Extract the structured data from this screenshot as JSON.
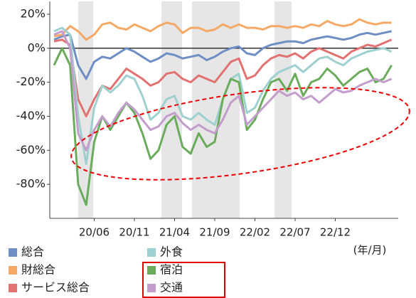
{
  "chart_data": {
    "type": "line",
    "categories": [
      null,
      null,
      null,
      null,
      null,
      "20/06",
      null,
      null,
      null,
      null,
      "20/11",
      null,
      null,
      null,
      null,
      "21/04",
      null,
      null,
      null,
      null,
      "21/09",
      null,
      null,
      null,
      null,
      "22/02",
      null,
      null,
      null,
      null,
      "22/07",
      null,
      null,
      null,
      null,
      "22/12",
      null,
      null,
      null,
      null,
      null,
      null,
      null
    ],
    "x_label": "(年/月)",
    "ylim": [
      -100,
      25
    ],
    "yticks": [
      {
        "value": -80,
        "label": "-80%"
      },
      {
        "value": -60,
        "label": "-60%"
      },
      {
        "value": -40,
        "label": "-40%"
      },
      {
        "value": -20,
        "label": "-20%"
      },
      {
        "value": 0,
        "label": "0%"
      },
      {
        "value": 20,
        "label": "20%"
      }
    ],
    "legend": "bottom",
    "series": [
      {
        "name": "総合",
        "color": "#6f8fc4",
        "values": [
          5,
          7,
          8,
          -10,
          -18,
          -8,
          -5,
          -6,
          -3,
          0,
          -2,
          -5,
          -8,
          -6,
          -3,
          -4,
          -6,
          -5,
          -4,
          -7,
          -5,
          -2,
          0,
          1,
          -3,
          -4,
          0,
          2,
          3,
          4,
          4,
          3,
          5,
          6,
          7,
          6,
          5,
          6,
          8,
          9,
          8,
          9,
          10
        ]
      },
      {
        "name": "財総合",
        "color": "#f4aa66",
        "values": [
          7,
          8,
          13,
          10,
          5,
          8,
          14,
          15,
          12,
          11,
          14,
          12,
          10,
          13,
          15,
          14,
          9,
          12,
          12,
          10,
          11,
          14,
          12,
          14,
          12,
          12,
          11,
          13,
          13,
          12,
          13,
          12,
          14,
          13,
          16,
          14,
          13,
          14,
          17,
          15,
          14,
          15,
          15
        ]
      },
      {
        "name": "サービス総合",
        "color": "#e27272",
        "values": [
          4,
          5,
          2,
          -30,
          -40,
          -30,
          -22,
          -24,
          -18,
          -12,
          -15,
          -18,
          -22,
          -20,
          -15,
          -14,
          -18,
          -20,
          -16,
          -18,
          -20,
          -14,
          -8,
          -6,
          -18,
          -16,
          -10,
          -6,
          -4,
          -5,
          -3,
          -6,
          -2,
          0,
          -2,
          -4,
          -6,
          -2,
          0,
          2,
          1,
          3,
          5
        ]
      },
      {
        "name": "外食",
        "color": "#9fd0d0",
        "values": [
          10,
          12,
          8,
          -40,
          -68,
          -35,
          -22,
          -26,
          -22,
          -16,
          -18,
          -28,
          -42,
          -38,
          -30,
          -28,
          -40,
          -42,
          -38,
          -42,
          -45,
          -30,
          -18,
          -15,
          -38,
          -35,
          -25,
          -18,
          -14,
          -12,
          -10,
          -14,
          -10,
          -6,
          -5,
          -8,
          -10,
          -6,
          -4,
          -2,
          -1,
          0,
          -2
        ]
      },
      {
        "name": "宿泊",
        "color": "#6aab5c",
        "values": [
          -10,
          0,
          -10,
          -80,
          -92,
          -55,
          -40,
          -48,
          -40,
          -32,
          -38,
          -50,
          -65,
          -60,
          -45,
          -40,
          -58,
          -62,
          -50,
          -58,
          -55,
          -30,
          -18,
          -20,
          -48,
          -42,
          -30,
          -20,
          -18,
          -25,
          -15,
          -28,
          -20,
          -18,
          -12,
          -16,
          -22,
          -18,
          -14,
          -12,
          -20,
          -18,
          -10
        ]
      },
      {
        "name": "交通",
        "color": "#c39dcb",
        "values": [
          8,
          10,
          0,
          -50,
          -60,
          -48,
          -40,
          -46,
          -38,
          -32,
          -36,
          -42,
          -48,
          -46,
          -40,
          -38,
          -44,
          -48,
          -45,
          -48,
          -50,
          -42,
          -32,
          -28,
          -45,
          -40,
          -35,
          -30,
          -25,
          -28,
          -26,
          -30,
          -28,
          -32,
          -28,
          -24,
          -26,
          -25,
          -22,
          -20,
          -18,
          -20,
          -18
        ]
      }
    ]
  }
}
